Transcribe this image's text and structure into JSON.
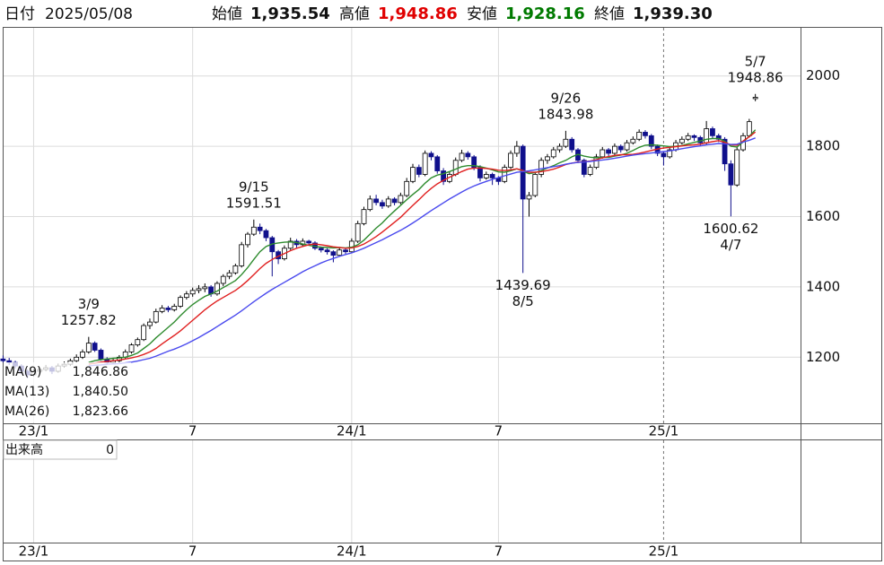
{
  "header": {
    "date_label": "日付",
    "date": "2025/05/08",
    "open_label": "始値",
    "open": "1,935.54",
    "high_label": "高値",
    "high": "1,948.86",
    "low_label": "安値",
    "low": "1,928.16",
    "close_label": "終値",
    "close": "1,939.30",
    "high_color": "#e00000",
    "low_color": "#007a00"
  },
  "chart_data": {
    "type": "candlestick",
    "categories": [
      null,
      null,
      null,
      null,
      null,
      "23/1",
      null,
      null,
      null,
      null,
      null,
      null,
      null,
      null,
      null,
      null,
      null,
      null,
      null,
      null,
      null,
      null,
      null,
      null,
      null,
      null,
      null,
      null,
      null,
      null,
      null,
      "7",
      null,
      null,
      null,
      null,
      null,
      null,
      null,
      null,
      null,
      null,
      null,
      null,
      null,
      null,
      null,
      null,
      null,
      null,
      null,
      null,
      null,
      null,
      null,
      null,
      null,
      "24/1",
      null,
      null,
      null,
      null,
      null,
      null,
      null,
      null,
      null,
      null,
      null,
      null,
      null,
      null,
      null,
      null,
      null,
      null,
      null,
      null,
      null,
      null,
      null,
      "7",
      null,
      null,
      null,
      null,
      null,
      null,
      null,
      null,
      null,
      null,
      null,
      null,
      null,
      null,
      null,
      null,
      null,
      null,
      null,
      null,
      null,
      null,
      null,
      null,
      null,
      null,
      "25/1",
      null,
      null,
      null,
      null,
      null,
      null,
      null,
      null,
      null,
      null,
      null,
      null,
      null,
      null,
      null
    ],
    "ohlc": [
      [
        1195,
        1205,
        1185,
        1190
      ],
      [
        1190,
        1198,
        1178,
        1185
      ],
      [
        1185,
        1190,
        1168,
        1175
      ],
      [
        1175,
        1180,
        1152,
        1160
      ],
      [
        1160,
        1165,
        1140,
        1150
      ],
      [
        1150,
        1168,
        1145,
        1160
      ],
      [
        1160,
        1172,
        1155,
        1165
      ],
      [
        1165,
        1178,
        1160,
        1170
      ],
      [
        1170,
        1175,
        1152,
        1160
      ],
      [
        1160,
        1182,
        1156,
        1175
      ],
      [
        1175,
        1188,
        1170,
        1180
      ],
      [
        1180,
        1196,
        1175,
        1190
      ],
      [
        1190,
        1208,
        1186,
        1200
      ],
      [
        1200,
        1222,
        1195,
        1215
      ],
      [
        1215,
        1257.82,
        1210,
        1240
      ],
      [
        1240,
        1245,
        1215,
        1220
      ],
      [
        1220,
        1225,
        1190,
        1195
      ],
      [
        1195,
        1200,
        1178,
        1185
      ],
      [
        1185,
        1196,
        1180,
        1190
      ],
      [
        1190,
        1206,
        1185,
        1200
      ],
      [
        1200,
        1222,
        1195,
        1215
      ],
      [
        1215,
        1240,
        1210,
        1235
      ],
      [
        1235,
        1256,
        1230,
        1250
      ],
      [
        1250,
        1296,
        1246,
        1290
      ],
      [
        1290,
        1310,
        1280,
        1300
      ],
      [
        1300,
        1338,
        1296,
        1330
      ],
      [
        1330,
        1348,
        1325,
        1340
      ],
      [
        1340,
        1346,
        1328,
        1335
      ],
      [
        1335,
        1352,
        1330,
        1345
      ],
      [
        1345,
        1376,
        1340,
        1370
      ],
      [
        1370,
        1388,
        1364,
        1380
      ],
      [
        1380,
        1398,
        1372,
        1390
      ],
      [
        1390,
        1405,
        1382,
        1395
      ],
      [
        1395,
        1410,
        1385,
        1400
      ],
      [
        1400,
        1405,
        1372,
        1380
      ],
      [
        1380,
        1416,
        1375,
        1410
      ],
      [
        1410,
        1436,
        1402,
        1430
      ],
      [
        1430,
        1448,
        1422,
        1440
      ],
      [
        1440,
        1466,
        1435,
        1460
      ],
      [
        1460,
        1528,
        1455,
        1520
      ],
      [
        1520,
        1556,
        1512,
        1550
      ],
      [
        1550,
        1591.51,
        1545,
        1570
      ],
      [
        1570,
        1580,
        1550,
        1560
      ],
      [
        1560,
        1565,
        1530,
        1540
      ],
      [
        1540,
        1545,
        1430,
        1500
      ],
      [
        1500,
        1505,
        1465,
        1480
      ],
      [
        1480,
        1518,
        1475,
        1510
      ],
      [
        1510,
        1540,
        1505,
        1530
      ],
      [
        1530,
        1536,
        1512,
        1520
      ],
      [
        1520,
        1538,
        1515,
        1530
      ],
      [
        1530,
        1534,
        1518,
        1525
      ],
      [
        1525,
        1530,
        1505,
        1510
      ],
      [
        1510,
        1515,
        1498,
        1505
      ],
      [
        1505,
        1510,
        1492,
        1500
      ],
      [
        1500,
        1504,
        1470,
        1490
      ],
      [
        1490,
        1512,
        1486,
        1505
      ],
      [
        1505,
        1510,
        1494,
        1500
      ],
      [
        1500,
        1538,
        1496,
        1530
      ],
      [
        1530,
        1588,
        1525,
        1580
      ],
      [
        1580,
        1628,
        1575,
        1620
      ],
      [
        1620,
        1660,
        1615,
        1650
      ],
      [
        1650,
        1662,
        1632,
        1640
      ],
      [
        1640,
        1648,
        1622,
        1630
      ],
      [
        1630,
        1658,
        1625,
        1650
      ],
      [
        1650,
        1655,
        1632,
        1640
      ],
      [
        1640,
        1668,
        1635,
        1660
      ],
      [
        1660,
        1710,
        1655,
        1700
      ],
      [
        1700,
        1750,
        1695,
        1740
      ],
      [
        1740,
        1748,
        1712,
        1720
      ],
      [
        1720,
        1788,
        1715,
        1780
      ],
      [
        1780,
        1786,
        1760,
        1770
      ],
      [
        1770,
        1775,
        1722,
        1730
      ],
      [
        1730,
        1738,
        1690,
        1700
      ],
      [
        1700,
        1728,
        1695,
        1720
      ],
      [
        1720,
        1768,
        1715,
        1760
      ],
      [
        1760,
        1790,
        1755,
        1780
      ],
      [
        1780,
        1786,
        1762,
        1770
      ],
      [
        1770,
        1775,
        1732,
        1740
      ],
      [
        1740,
        1746,
        1700,
        1710
      ],
      [
        1710,
        1728,
        1705,
        1720
      ],
      [
        1720,
        1725,
        1690,
        1710
      ],
      [
        1710,
        1715,
        1690,
        1700
      ],
      [
        1700,
        1748,
        1695,
        1740
      ],
      [
        1740,
        1788,
        1735,
        1780
      ],
      [
        1780,
        1815,
        1770,
        1800
      ],
      [
        1800,
        1805,
        1439.69,
        1650
      ],
      [
        1650,
        1670,
        1600,
        1660
      ],
      [
        1660,
        1728,
        1655,
        1720
      ],
      [
        1720,
        1768,
        1712,
        1760
      ],
      [
        1760,
        1778,
        1750,
        1770
      ],
      [
        1770,
        1798,
        1765,
        1790
      ],
      [
        1790,
        1808,
        1782,
        1800
      ],
      [
        1800,
        1843.98,
        1795,
        1820
      ],
      [
        1820,
        1826,
        1782,
        1790
      ],
      [
        1790,
        1795,
        1752,
        1760
      ],
      [
        1760,
        1765,
        1712,
        1720
      ],
      [
        1720,
        1748,
        1715,
        1740
      ],
      [
        1740,
        1778,
        1735,
        1770
      ],
      [
        1770,
        1798,
        1765,
        1790
      ],
      [
        1790,
        1795,
        1772,
        1780
      ],
      [
        1780,
        1808,
        1775,
        1800
      ],
      [
        1800,
        1805,
        1782,
        1790
      ],
      [
        1790,
        1818,
        1785,
        1810
      ],
      [
        1810,
        1828,
        1805,
        1820
      ],
      [
        1820,
        1848,
        1815,
        1840
      ],
      [
        1840,
        1846,
        1822,
        1830
      ],
      [
        1830,
        1835,
        1792,
        1800
      ],
      [
        1800,
        1805,
        1772,
        1780
      ],
      [
        1780,
        1786,
        1745,
        1770
      ],
      [
        1770,
        1798,
        1765,
        1790
      ],
      [
        1790,
        1818,
        1785,
        1810
      ],
      [
        1810,
        1828,
        1805,
        1820
      ],
      [
        1820,
        1838,
        1815,
        1830
      ],
      [
        1830,
        1834,
        1815,
        1825
      ],
      [
        1825,
        1830,
        1802,
        1810
      ],
      [
        1810,
        1872,
        1805,
        1850
      ],
      [
        1850,
        1856,
        1822,
        1830
      ],
      [
        1830,
        1836,
        1812,
        1820
      ],
      [
        1820,
        1826,
        1730,
        1750
      ],
      [
        1750,
        1760,
        1600.62,
        1690
      ],
      [
        1690,
        1798,
        1685,
        1790
      ],
      [
        1790,
        1838,
        1785,
        1830
      ],
      [
        1830,
        1878,
        1825,
        1870
      ],
      [
        1935.54,
        1948.86,
        1928.16,
        1939.3
      ]
    ],
    "up_color": "#ffffff",
    "down_color": "#10108c",
    "series": [
      {
        "name": "MA(9)",
        "color": "#2e8b2e",
        "legend_label": "1,846.86",
        "values": [
          null,
          null,
          null,
          null,
          null,
          null,
          null,
          null,
          null,
          null,
          null,
          null,
          null,
          null,
          1185,
          1190,
          1193,
          1195,
          1197,
          1198,
          1200,
          1205,
          1212,
          1225,
          1238,
          1255,
          1270,
          1285,
          1300,
          1318,
          1335,
          1350,
          1362,
          1373,
          1380,
          1388,
          1398,
          1408,
          1418,
          1435,
          1455,
          1478,
          1500,
          1515,
          1522,
          1525,
          1527,
          1528,
          1526,
          1522,
          1518,
          1515,
          1513,
          1512,
          1511,
          1512,
          1511,
          1513,
          1520,
          1533,
          1550,
          1567,
          1582,
          1600,
          1616,
          1632,
          1648,
          1663,
          1677,
          1695,
          1710,
          1718,
          1722,
          1728,
          1735,
          1742,
          1745,
          1745,
          1742,
          1738,
          1733,
          1727,
          1726,
          1730,
          1736,
          1729,
          1722,
          1725,
          1731,
          1738,
          1745,
          1753,
          1760,
          1770,
          1777,
          1772,
          1769,
          1767,
          1768,
          1768,
          1772,
          1775,
          1780,
          1788,
          1797,
          1803,
          1804,
          1803,
          1801,
          1799,
          1800,
          1802,
          1807,
          1811,
          1815,
          1820,
          1822,
          1822,
          1814,
          1800,
          1798,
          1812,
          1828,
          1846.86
        ]
      },
      {
        "name": "MA(13)",
        "color": "#e02020",
        "legend_label": "1,840.50",
        "values": [
          null,
          null,
          null,
          null,
          null,
          null,
          null,
          null,
          null,
          null,
          null,
          null,
          null,
          null,
          1180,
          1183,
          1186,
          1188,
          1190,
          1192,
          1195,
          1198,
          1202,
          1208,
          1215,
          1225,
          1238,
          1250,
          1262,
          1275,
          1290,
          1305,
          1320,
          1335,
          1348,
          1360,
          1370,
          1380,
          1390,
          1403,
          1418,
          1435,
          1452,
          1467,
          1478,
          1487,
          1495,
          1503,
          1510,
          1515,
          1520,
          1522,
          1520,
          1517,
          1514,
          1512,
          1510,
          1511,
          1515,
          1522,
          1532,
          1543,
          1556,
          1570,
          1584,
          1598,
          1615,
          1632,
          1648,
          1665,
          1680,
          1693,
          1703,
          1712,
          1720,
          1728,
          1735,
          1738,
          1738,
          1737,
          1735,
          1732,
          1731,
          1733,
          1736,
          1731,
          1726,
          1726,
          1728,
          1731,
          1735,
          1741,
          1748,
          1752,
          1755,
          1756,
          1758,
          1762,
          1767,
          1771,
          1774,
          1776,
          1776,
          1777,
          1780,
          1784,
          1788,
          1792,
          1795,
          1797,
          1799,
          1801,
          1803,
          1804,
          1806,
          1810,
          1813,
          1816,
          1811,
          1804,
          1803,
          1815,
          1827,
          1840.5
        ]
      },
      {
        "name": "MA(26)",
        "color": "#4a4aee",
        "legend_label": "1,823.66",
        "values": [
          null,
          null,
          null,
          null,
          null,
          null,
          null,
          null,
          null,
          null,
          null,
          null,
          null,
          null,
          1175,
          1177,
          1178,
          1180,
          1181,
          1182,
          1184,
          1186,
          1189,
          1193,
          1197,
          1203,
          1210,
          1217,
          1223,
          1230,
          1238,
          1247,
          1256,
          1266,
          1276,
          1287,
          1298,
          1309,
          1320,
          1332,
          1345,
          1358,
          1370,
          1382,
          1393,
          1403,
          1413,
          1423,
          1433,
          1443,
          1452,
          1460,
          1468,
          1475,
          1481,
          1487,
          1492,
          1497,
          1503,
          1510,
          1518,
          1526,
          1534,
          1543,
          1552,
          1561,
          1571,
          1582,
          1593,
          1605,
          1617,
          1628,
          1639,
          1650,
          1660,
          1670,
          1679,
          1687,
          1694,
          1700,
          1706,
          1711,
          1716,
          1721,
          1726,
          1728,
          1730,
          1733,
          1736,
          1739,
          1742,
          1745,
          1749,
          1752,
          1754,
          1755,
          1757,
          1759,
          1761,
          1763,
          1766,
          1769,
          1772,
          1775,
          1777,
          1779,
          1781,
          1783,
          1785,
          1787,
          1790,
          1793,
          1796,
          1799,
          1801,
          1804,
          1806,
          1808,
          1807,
          1805,
          1806,
          1812,
          1817,
          1823.66
        ]
      }
    ],
    "annotations": [
      {
        "date": "3/9",
        "value": 1257.82,
        "kind": "high"
      },
      {
        "date": "9/15",
        "value": 1591.51,
        "kind": "high"
      },
      {
        "date": "9/26",
        "value": 1843.98,
        "kind": "high"
      },
      {
        "date": "5/7",
        "value": 1948.86,
        "kind": "high"
      },
      {
        "date": "8/5",
        "value": 1439.69,
        "kind": "low"
      },
      {
        "date": "4/7",
        "value": 1600.62,
        "kind": "low"
      }
    ],
    "ylim": [
      1012,
      2137
    ],
    "yticks": [
      1200,
      1400,
      1600,
      1800,
      2000
    ],
    "grid": true,
    "volume": {
      "label": "出来高",
      "value": 0
    }
  }
}
